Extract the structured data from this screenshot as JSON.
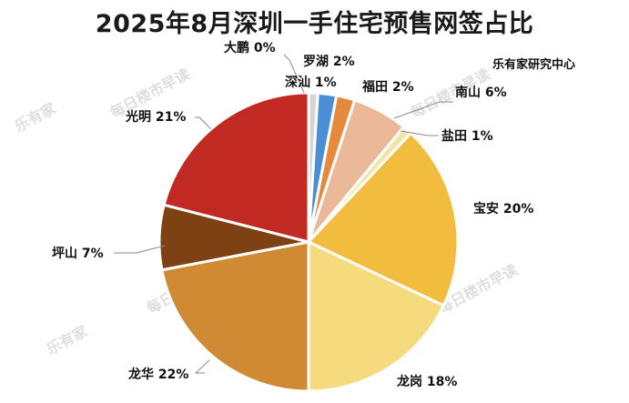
{
  "chart_data": {
    "type": "pie",
    "title": "2025年8月深圳一手住宅预售网签占比",
    "source": "乐有家研究中心",
    "watermark": {
      "logo": "乐有家",
      "text": "每日楼市早读"
    },
    "slices": [
      {
        "name": "深汕",
        "value": 1,
        "label": "深汕 1%",
        "color": "#d6d6d6"
      },
      {
        "name": "罗湖",
        "value": 2,
        "label": "罗湖 2%",
        "color": "#4a8fd6"
      },
      {
        "name": "福田",
        "value": 2,
        "label": "福田 2%",
        "color": "#e58a3c"
      },
      {
        "name": "南山",
        "value": 6,
        "label": "南山 6%",
        "color": "#ebb99a"
      },
      {
        "name": "盐田",
        "value": 1,
        "label": "盐田 1%",
        "color": "#f0e6a8"
      },
      {
        "name": "宝安",
        "value": 20,
        "label": "宝安 20%",
        "color": "#f2bd3e"
      },
      {
        "name": "龙岗",
        "value": 18,
        "label": "龙岗 18%",
        "color": "#f6da7e"
      },
      {
        "name": "龙华",
        "value": 22,
        "label": "龙华 22%",
        "color": "#d08a33"
      },
      {
        "name": "坪山",
        "value": 7,
        "label": "坪山 7%",
        "color": "#7d4114"
      },
      {
        "name": "光明",
        "value": 21,
        "label": "光明 21%",
        "color": "#c12a22"
      },
      {
        "name": "大鹏",
        "value": 0,
        "label": "大鹏 0%",
        "color": "#e4e4e4"
      }
    ]
  }
}
